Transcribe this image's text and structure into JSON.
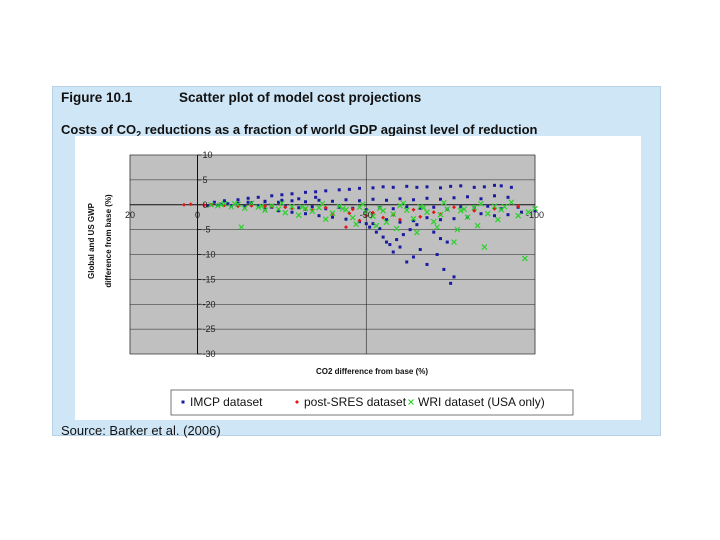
{
  "figure": {
    "number": "Figure 10.1",
    "title": "Scatter plot of model cost projections",
    "subtitle_pre": "Costs of CO",
    "subtitle_sub": "2",
    "subtitle_post": " reductions as a fraction of world GDP against level of reduction",
    "source": "Source: Barker et al. (2006)"
  },
  "colors": {
    "panel": "#cfe6f6",
    "plot_bg": "#c0c0c0",
    "imcp": "#1a1aa0",
    "post_sres": "#e01818",
    "wri": "#2bd12b"
  },
  "chart_data": {
    "type": "scatter",
    "xlabel": "CO2 difference from base (%)",
    "ylabel_line1": "Global and US GWP",
    "ylabel_line2": "difference from base (%)",
    "xlim": [
      -100,
      20
    ],
    "ylim": [
      -30,
      10
    ],
    "x_ticks": [
      -100,
      -50,
      0,
      20
    ],
    "x_tick_labels": [
      "-100",
      "-50",
      "0",
      "20"
    ],
    "y_ticks": [
      10,
      5,
      0,
      -5,
      -10,
      -15,
      -20,
      -25,
      -30
    ],
    "y_tick_labels": [
      "10",
      "5",
      "0",
      "-5",
      "-10",
      "-15",
      "-20",
      "-25",
      "-30"
    ],
    "grid": true,
    "legend_position": "bottom",
    "series": [
      {
        "name": "IMCP dataset",
        "marker": "square",
        "points": [
          [
            -93,
            3.5
          ],
          [
            -90,
            3.8
          ],
          [
            -88,
            3.9
          ],
          [
            -85,
            3.6
          ],
          [
            -82,
            3.5
          ],
          [
            -78,
            3.8
          ],
          [
            -75,
            3.7
          ],
          [
            -72,
            3.4
          ],
          [
            -68,
            3.6
          ],
          [
            -65,
            3.5
          ],
          [
            -62,
            3.7
          ],
          [
            -58,
            3.5
          ],
          [
            -55,
            3.6
          ],
          [
            -52,
            3.4
          ],
          [
            -48,
            3.3
          ],
          [
            -45,
            3.1
          ],
          [
            -42,
            3.0
          ],
          [
            -38,
            2.8
          ],
          [
            -35,
            2.6
          ],
          [
            -32,
            2.5
          ],
          [
            -28,
            2.2
          ],
          [
            -25,
            2.0
          ],
          [
            -22,
            1.8
          ],
          [
            -18,
            1.5
          ],
          [
            -15,
            1.3
          ],
          [
            -12,
            1.0
          ],
          [
            -8,
            0.8
          ],
          [
            -5,
            0.5
          ],
          [
            -92,
            1.5
          ],
          [
            -88,
            1.8
          ],
          [
            -84,
            1.2
          ],
          [
            -80,
            1.6
          ],
          [
            -76,
            1.4
          ],
          [
            -72,
            1.1
          ],
          [
            -68,
            1.3
          ],
          [
            -64,
            1.0
          ],
          [
            -60,
            1.2
          ],
          [
            -56,
            0.9
          ],
          [
            -52,
            1.1
          ],
          [
            -48,
            0.8
          ],
          [
            -44,
            1.0
          ],
          [
            -40,
            0.7
          ],
          [
            -36,
            0.9
          ],
          [
            -32,
            0.6
          ],
          [
            -28,
            0.8
          ],
          [
            -24,
            0.5
          ],
          [
            -20,
            0.6
          ],
          [
            -16,
            0.4
          ],
          [
            -95,
            -0.5
          ],
          [
            -90,
            -0.8
          ],
          [
            -86,
            -0.3
          ],
          [
            -82,
            -0.6
          ],
          [
            -78,
            -0.4
          ],
          [
            -74,
            -0.9
          ],
          [
            -70,
            -0.5
          ],
          [
            -66,
            -0.7
          ],
          [
            -62,
            -0.4
          ],
          [
            -58,
            -0.8
          ],
          [
            -54,
            -0.6
          ],
          [
            -50,
            -1.0
          ],
          [
            -46,
            -0.7
          ],
          [
            -42,
            -0.5
          ],
          [
            -38,
            -0.8
          ],
          [
            -34,
            -0.4
          ],
          [
            -30,
            -0.6
          ],
          [
            -26,
            -0.3
          ],
          [
            -22,
            -0.5
          ],
          [
            -18,
            -0.2
          ],
          [
            -14,
            -0.4
          ],
          [
            -10,
            -0.2
          ],
          [
            -6,
            -0.1
          ],
          [
            -100,
            -1.2
          ],
          [
            -96,
            -1.5
          ],
          [
            -92,
            -2.0
          ],
          [
            -88,
            -2.2
          ],
          [
            -84,
            -1.8
          ],
          [
            -80,
            -2.5
          ],
          [
            -76,
            -2.8
          ],
          [
            -72,
            -3.0
          ],
          [
            -68,
            -2.6
          ],
          [
            -64,
            -3.2
          ],
          [
            -60,
            -3.5
          ],
          [
            -56,
            -3.0
          ],
          [
            -52,
            -3.8
          ],
          [
            -48,
            -3.4
          ],
          [
            -44,
            -2.9
          ],
          [
            -40,
            -2.5
          ],
          [
            -36,
            -2.2
          ],
          [
            -32,
            -1.8
          ],
          [
            -28,
            -1.5
          ],
          [
            -24,
            -1.2
          ],
          [
            -20,
            -0.9
          ],
          [
            -65,
            -4.0
          ],
          [
            -63,
            -5.0
          ],
          [
            -61,
            -6.0
          ],
          [
            -59,
            -7.0
          ],
          [
            -57,
            -8.0
          ],
          [
            -55,
            -6.5
          ],
          [
            -53,
            -5.5
          ],
          [
            -51,
            -4.5
          ],
          [
            -66,
            -9.0
          ],
          [
            -64,
            -10.5
          ],
          [
            -62,
            -11.5
          ],
          [
            -68,
            -12.0
          ],
          [
            -58,
            -9.5
          ],
          [
            -56,
            -7.5
          ],
          [
            -54,
            -4.8
          ],
          [
            -70,
            -5.5
          ],
          [
            -72,
            -6.8
          ],
          [
            -74,
            -7.5
          ],
          [
            -60,
            -8.5
          ],
          [
            -50,
            -3.8
          ],
          [
            -76,
            -14.5
          ],
          [
            -75,
            -15.8
          ],
          [
            -73,
            -13.0
          ],
          [
            -71,
            -10.0
          ],
          [
            -35,
            1.5
          ],
          [
            -30,
            1.2
          ],
          [
            -25,
            0.9
          ],
          [
            -20,
            0.7
          ],
          [
            -15,
            0.5
          ],
          [
            -12,
            0.3
          ],
          [
            -9,
            0.2
          ],
          [
            -7,
            0.1
          ],
          [
            -4,
            0.0
          ],
          [
            -3,
            -0.2
          ]
        ]
      },
      {
        "name": "post-SRES dataset",
        "marker": "diamond",
        "points": [
          [
            -95,
            -0.3
          ],
          [
            -88,
            -0.8
          ],
          [
            -82,
            -1.2
          ],
          [
            -76,
            -0.5
          ],
          [
            -70,
            -1.5
          ],
          [
            -64,
            -1.0
          ],
          [
            -58,
            -2.0
          ],
          [
            -52,
            -1.6
          ],
          [
            -46,
            -0.9
          ],
          [
            -40,
            -1.8
          ],
          [
            -34,
            -1.1
          ],
          [
            -28,
            -0.7
          ],
          [
            -22,
            -0.4
          ],
          [
            -16,
            -0.2
          ],
          [
            -12,
            -0.3
          ],
          [
            -8,
            -0.1
          ],
          [
            -4,
            0.0
          ],
          [
            -2,
            -0.1
          ],
          [
            2,
            0.1
          ],
          [
            4,
            0.0
          ],
          [
            -60,
            -3.0
          ],
          [
            -55,
            -2.6
          ],
          [
            -50,
            -2.2
          ],
          [
            -45,
            -1.7
          ],
          [
            -38,
            -0.6
          ],
          [
            -32,
            -0.9
          ],
          [
            -26,
            -0.5
          ],
          [
            -20,
            -0.3
          ],
          [
            -44,
            -4.5
          ],
          [
            -48,
            -3.2
          ],
          [
            -66,
            -2.4
          ],
          [
            -72,
            -1.9
          ]
        ]
      },
      {
        "name": "WRI dataset (USA only)",
        "marker": "x",
        "points": [
          [
            -100,
            -0.8
          ],
          [
            -98,
            -1.5
          ],
          [
            -97,
            -10.8
          ],
          [
            -95,
            -2.2
          ],
          [
            -93,
            0.5
          ],
          [
            -90,
            -1.0
          ],
          [
            -88,
            -0.3
          ],
          [
            -86,
            -1.8
          ],
          [
            -85,
            -8.5
          ],
          [
            -82,
            -0.6
          ],
          [
            -80,
            -2.5
          ],
          [
            -78,
            -1.2
          ],
          [
            -76,
            -7.5
          ],
          [
            -74,
            -0.9
          ],
          [
            -72,
            -2.0
          ],
          [
            -70,
            -3.4
          ],
          [
            -68,
            -1.5
          ],
          [
            -66,
            -0.4
          ],
          [
            -64,
            -2.8
          ],
          [
            -62,
            -1.1
          ],
          [
            -60,
            -0.2
          ],
          [
            -58,
            -1.9
          ],
          [
            -56,
            -3.5
          ],
          [
            -54,
            -0.7
          ],
          [
            -52,
            -2.3
          ],
          [
            -50,
            -1.4
          ],
          [
            -48,
            -0.5
          ],
          [
            -46,
            -2.6
          ],
          [
            -44,
            -1.0
          ],
          [
            -42,
            -0.3
          ],
          [
            -40,
            -1.7
          ],
          [
            -38,
            -2.9
          ],
          [
            -36,
            -0.6
          ],
          [
            -34,
            -1.3
          ],
          [
            -32,
            -0.8
          ],
          [
            -30,
            -2.1
          ],
          [
            -28,
            -0.4
          ],
          [
            -26,
            -1.6
          ],
          [
            -24,
            -0.9
          ],
          [
            -22,
            -0.2
          ],
          [
            -20,
            -1.1
          ],
          [
            -18,
            -0.5
          ],
          [
            -16,
            0.3
          ],
          [
            -14,
            -0.7
          ],
          [
            -12,
            0.1
          ],
          [
            -10,
            -0.4
          ],
          [
            -8,
            0.2
          ],
          [
            -6,
            -0.2
          ],
          [
            -4,
            0.0
          ],
          [
            -13,
            -4.5
          ],
          [
            -91,
            -0.4
          ],
          [
            -84,
            0.2
          ],
          [
            -79,
            -0.9
          ],
          [
            -73,
            0.4
          ],
          [
            -67,
            -0.6
          ],
          [
            -61,
            0.3
          ],
          [
            -55,
            -1.2
          ],
          [
            -49,
            0.1
          ],
          [
            -43,
            -0.8
          ],
          [
            -37,
            0.2
          ],
          [
            -31,
            -0.5
          ],
          [
            -25,
            0.3
          ],
          [
            -19,
            -0.3
          ],
          [
            -11,
            0.2
          ],
          [
            -7,
            0.0
          ],
          [
            -89,
            -3.0
          ],
          [
            -83,
            -4.2
          ],
          [
            -77,
            -5.0
          ],
          [
            -71,
            -4.5
          ],
          [
            -65,
            -5.6
          ],
          [
            -59,
            -4.8
          ],
          [
            -53,
            -4.2
          ],
          [
            -47,
            -3.9
          ]
        ]
      }
    ]
  }
}
